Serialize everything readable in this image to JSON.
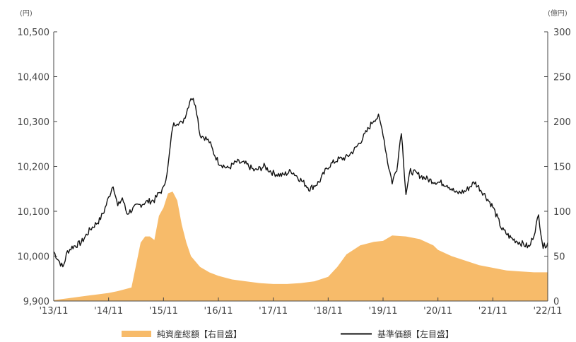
{
  "chart_data": {
    "type": "area+line",
    "units": {
      "left": "(円)",
      "right": "(億円)"
    },
    "x_ticks": [
      "'13/11",
      "'14/11",
      "'15/11",
      "'16/11",
      "'17/11",
      "'18/11",
      "'19/11",
      "'20/11",
      "'21/11",
      "'22/11"
    ],
    "y_left": {
      "ticks": [
        "9,900",
        "10,000",
        "10,100",
        "10,200",
        "10,300",
        "10,400",
        "10,500"
      ],
      "min": 9900,
      "max": 10500
    },
    "y_right": {
      "ticks": [
        "0",
        "50",
        "100",
        "150",
        "200",
        "250",
        "300"
      ],
      "min": 0,
      "max": 300
    },
    "legend": [
      "純資産総額【右目盛】",
      "基準価額【左目盛】"
    ],
    "colors": {
      "area": "#f7bb6a",
      "line": "#111111",
      "axis": "#444444"
    },
    "series": [
      {
        "name": "純資産総額【右目盛】",
        "axis": "right",
        "type": "area",
        "points": [
          [
            "2013-11",
            1
          ],
          [
            "2014-02",
            3
          ],
          [
            "2014-05",
            5
          ],
          [
            "2014-08",
            7
          ],
          [
            "2014-11",
            9
          ],
          [
            "2015-01",
            11
          ],
          [
            "2015-04",
            15
          ],
          [
            "2015-05",
            40
          ],
          [
            "2015-06",
            65
          ],
          [
            "2015-07",
            72
          ],
          [
            "2015-08",
            72
          ],
          [
            "2015-09",
            68
          ],
          [
            "2015-10",
            95
          ],
          [
            "2015-11",
            104
          ],
          [
            "2015-12",
            120
          ],
          [
            "2016-01",
            122
          ],
          [
            "2016-02",
            112
          ],
          [
            "2016-03",
            85
          ],
          [
            "2016-04",
            65
          ],
          [
            "2016-05",
            50
          ],
          [
            "2016-07",
            38
          ],
          [
            "2016-09",
            32
          ],
          [
            "2016-11",
            28
          ],
          [
            "2017-02",
            24
          ],
          [
            "2017-05",
            22
          ],
          [
            "2017-08",
            20
          ],
          [
            "2017-11",
            19
          ],
          [
            "2018-02",
            19
          ],
          [
            "2018-05",
            20
          ],
          [
            "2018-08",
            22
          ],
          [
            "2018-11",
            27
          ],
          [
            "2019-01",
            38
          ],
          [
            "2019-03",
            52
          ],
          [
            "2019-06",
            62
          ],
          [
            "2019-09",
            66
          ],
          [
            "2019-11",
            67
          ],
          [
            "2020-01",
            73
          ],
          [
            "2020-04",
            72
          ],
          [
            "2020-07",
            69
          ],
          [
            "2020-10",
            62
          ],
          [
            "2020-11",
            57
          ],
          [
            "2021-02",
            50
          ],
          [
            "2021-05",
            45
          ],
          [
            "2021-08",
            40
          ],
          [
            "2021-11",
            37
          ],
          [
            "2022-02",
            34
          ],
          [
            "2022-05",
            33
          ],
          [
            "2022-08",
            32
          ],
          [
            "2022-11",
            32
          ]
        ]
      },
      {
        "name": "基準価額【左目盛】",
        "axis": "left",
        "type": "line",
        "points": [
          [
            "2013-11",
            10010
          ],
          [
            "2013-12",
            9992
          ],
          [
            "2014-01",
            9975
          ],
          [
            "2014-02",
            10010
          ],
          [
            "2014-03",
            10020
          ],
          [
            "2014-05",
            10030
          ],
          [
            "2014-07",
            10060
          ],
          [
            "2014-09",
            10080
          ],
          [
            "2014-10",
            10100
          ],
          [
            "2014-11",
            10130
          ],
          [
            "2014-12",
            10160
          ],
          [
            "2015-01",
            10110
          ],
          [
            "2015-02",
            10130
          ],
          [
            "2015-03",
            10095
          ],
          [
            "2015-05",
            10110
          ],
          [
            "2015-07",
            10120
          ],
          [
            "2015-09",
            10125
          ],
          [
            "2015-10",
            10140
          ],
          [
            "2015-11",
            10150
          ],
          [
            "2015-12",
            10200
          ],
          [
            "2016-01",
            10290
          ],
          [
            "2016-02",
            10300
          ],
          [
            "2016-03",
            10295
          ],
          [
            "2016-04",
            10320
          ],
          [
            "2016-05",
            10355
          ],
          [
            "2016-06",
            10340
          ],
          [
            "2016-07",
            10270
          ],
          [
            "2016-08",
            10265
          ],
          [
            "2016-09",
            10255
          ],
          [
            "2016-10",
            10230
          ],
          [
            "2016-11",
            10210
          ],
          [
            "2017-01",
            10195
          ],
          [
            "2017-03",
            10210
          ],
          [
            "2017-05",
            10205
          ],
          [
            "2017-07",
            10190
          ],
          [
            "2017-09",
            10200
          ],
          [
            "2017-11",
            10185
          ],
          [
            "2018-01",
            10180
          ],
          [
            "2018-03",
            10190
          ],
          [
            "2018-05",
            10170
          ],
          [
            "2018-07",
            10150
          ],
          [
            "2018-09",
            10165
          ],
          [
            "2018-11",
            10200
          ],
          [
            "2019-01",
            10215
          ],
          [
            "2019-03",
            10220
          ],
          [
            "2019-05",
            10240
          ],
          [
            "2019-07",
            10270
          ],
          [
            "2019-09",
            10305
          ],
          [
            "2019-10",
            10310
          ],
          [
            "2019-11",
            10275
          ],
          [
            "2019-12",
            10210
          ],
          [
            "2020-01",
            10165
          ],
          [
            "2020-02",
            10195
          ],
          [
            "2020-03",
            10280
          ],
          [
            "2020-04",
            10140
          ],
          [
            "2020-05",
            10190
          ],
          [
            "2020-07",
            10180
          ],
          [
            "2020-09",
            10170
          ],
          [
            "2020-11",
            10165
          ],
          [
            "2021-01",
            10160
          ],
          [
            "2021-03",
            10140
          ],
          [
            "2021-05",
            10145
          ],
          [
            "2021-07",
            10165
          ],
          [
            "2021-09",
            10140
          ],
          [
            "2021-11",
            10110
          ],
          [
            "2022-01",
            10060
          ],
          [
            "2022-03",
            10040
          ],
          [
            "2022-05",
            10030
          ],
          [
            "2022-07",
            10020
          ],
          [
            "2022-08",
            10050
          ],
          [
            "2022-09",
            10090
          ],
          [
            "2022-10",
            10020
          ],
          [
            "2022-11",
            10030
          ]
        ]
      }
    ]
  }
}
